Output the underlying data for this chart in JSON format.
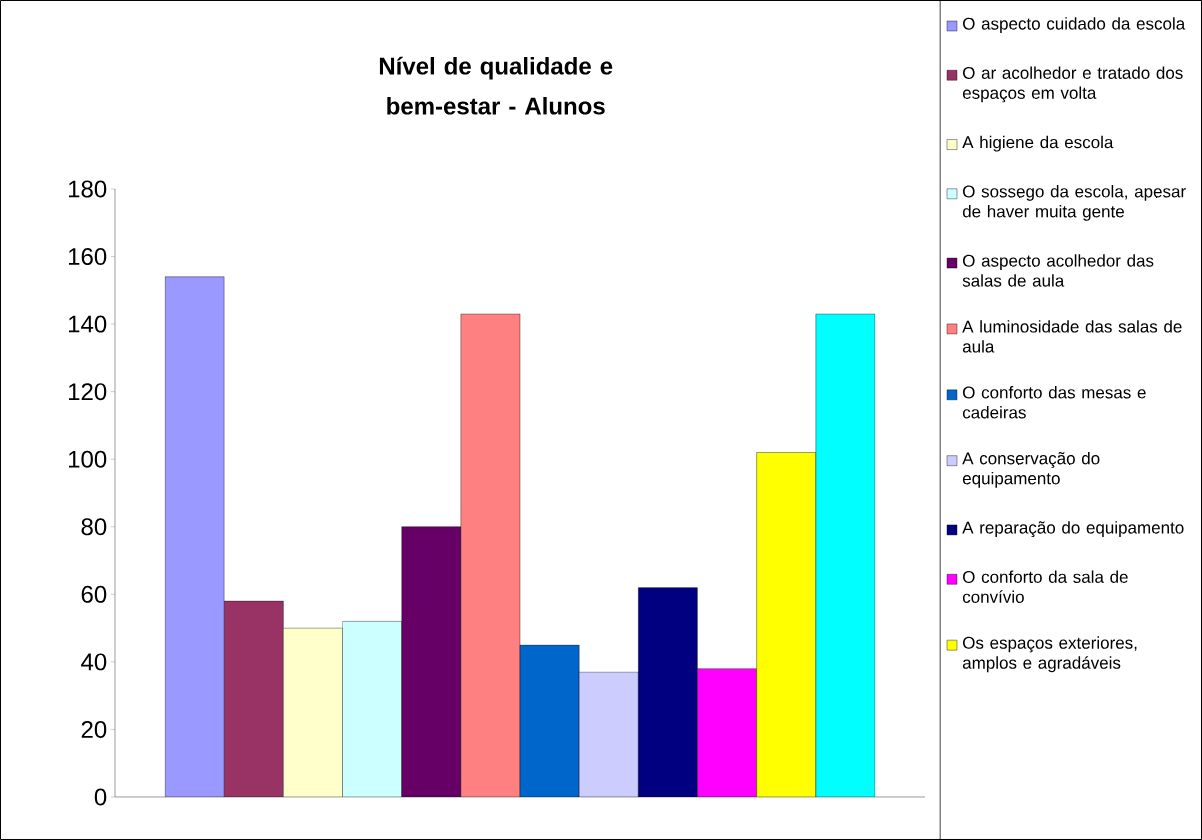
{
  "chart_data": {
    "type": "bar",
    "title": "Nível de qualidade e bem-estar - Alunos",
    "categories": [
      null
    ],
    "series": [
      {
        "name": "O aspecto cuidado da escola",
        "color": "#9999ff",
        "values": [
          154
        ]
      },
      {
        "name": "O ar acolhedor e tratado dos espaços em volta",
        "color": "#993366",
        "values": [
          58
        ]
      },
      {
        "name": "A higiene da escola",
        "color": "#ffffcc",
        "values": [
          50
        ]
      },
      {
        "name": "O sossego da escola, apesar de haver muita gente",
        "color": "#ccffff",
        "values": [
          52
        ]
      },
      {
        "name": "O aspecto acolhedor das salas de aula",
        "color": "#660066",
        "values": [
          80
        ]
      },
      {
        "name": "A luminosidade das salas de aula",
        "color": "#ff8080",
        "values": [
          143
        ]
      },
      {
        "name": "O conforto das mesas e cadeiras",
        "color": "#0066cc",
        "values": [
          45
        ]
      },
      {
        "name": "A conservação do equipamento",
        "color": "#ccccff",
        "values": [
          37
        ]
      },
      {
        "name": "A reparação do equipamento",
        "color": "#000080",
        "values": [
          62
        ]
      },
      {
        "name": "O conforto da sala de convívio",
        "color": "#ff00ff",
        "values": [
          38
        ]
      },
      {
        "name": "Os espaços exteriores, amplos e agradáveis",
        "color": "#ffff00",
        "values": [
          102
        ]
      },
      {
        "color": "#00ffff",
        "values": [
          143
        ]
      }
    ],
    "ylim": [
      0,
      180
    ],
    "yticks": [
      0,
      20,
      40,
      60,
      80,
      100,
      120,
      140,
      160,
      180
    ],
    "legend": "right"
  }
}
